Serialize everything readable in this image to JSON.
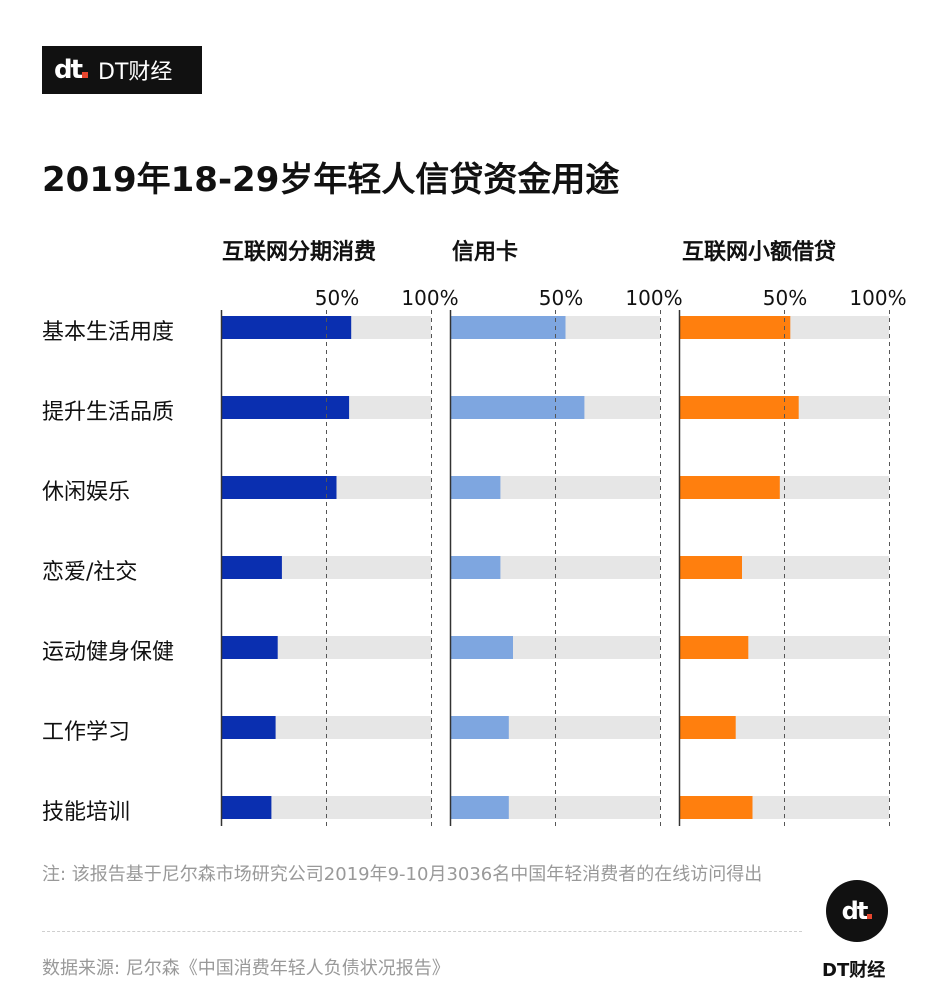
{
  "brand": {
    "logo_mark": "dt",
    "logo_text": "DT财经",
    "footer_text": "DT财经"
  },
  "title": "2019年18-29岁年轻人信贷资金用途",
  "ticks": [
    "50%",
    "100%"
  ],
  "note": "注: 该报告基于尼尔森市场研究公司2019年9-10月3036名中国年轻消费者的在线访问得出",
  "source": "数据来源: 尼尔森《中国消费年轻人负债状况报告》",
  "chart_data": {
    "type": "bar",
    "orientation": "horizontal",
    "categories": [
      "基本生活用度",
      "提升生活品质",
      "休闲娱乐",
      "恋爱/社交",
      "运动健身保健",
      "工作学习",
      "技能培训"
    ],
    "xlim": [
      0,
      100
    ],
    "unit": "%",
    "grid": "dashed lines at 50% and 100%",
    "series": [
      {
        "name": "互联网分期消费",
        "color": "#0a2fb0",
        "values": [
          62,
          61,
          55,
          29,
          27,
          26,
          24
        ]
      },
      {
        "name": "信用卡",
        "color": "#7ea6e0",
        "values": [
          55,
          64,
          24,
          24,
          30,
          28,
          28
        ]
      },
      {
        "name": "互联网小额借贷",
        "color": "#ff7f0e",
        "values": [
          53,
          57,
          48,
          30,
          33,
          27,
          35
        ]
      }
    ],
    "track_color": "#e6e6e6"
  }
}
